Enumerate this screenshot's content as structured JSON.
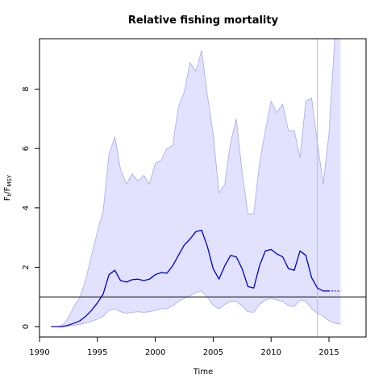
{
  "chart_data": {
    "type": "area",
    "title": "Relative fishing mortality",
    "xlabel": "Time",
    "ylabel": {
      "main": "F",
      "sub1": "t",
      "slash": "/F",
      "sub2": "MSY"
    },
    "xlim": [
      1990,
      2018.2
    ],
    "ylim": [
      -0.35,
      9.7
    ],
    "xticks": [
      1990,
      1995,
      2000,
      2005,
      2010,
      2015
    ],
    "yticks": [
      0,
      2,
      4,
      6,
      8
    ],
    "reference_line_y": 1.0,
    "vertical_line_x": 2014.0,
    "colors": {
      "median": "#0000cc",
      "band_fill": "#e2e2ff",
      "band_edge": "#a8a8ee",
      "reference": "#000000",
      "vertical": "#bbbbbb"
    },
    "series": [
      {
        "role": "median",
        "x": [
          1991,
          1991.5,
          1992,
          1992.5,
          1993,
          1993.5,
          1994,
          1994.5,
          1995,
          1995.5,
          1996,
          1996.5,
          1997,
          1997.5,
          1998,
          1998.5,
          1999,
          1999.5,
          2000,
          2000.5,
          2001,
          2001.5,
          2002,
          2002.5,
          2003,
          2003.5,
          2004,
          2004.5,
          2005,
          2005.5,
          2006,
          2006.5,
          2007,
          2007.5,
          2008,
          2008.5,
          2009,
          2009.5,
          2010,
          2010.5,
          2011,
          2011.5,
          2012,
          2012.5,
          2013,
          2013.5,
          2014,
          2014.5,
          2015
        ],
        "y": [
          0.0,
          0.0,
          0.0,
          0.05,
          0.12,
          0.2,
          0.35,
          0.55,
          0.8,
          1.1,
          1.75,
          1.9,
          1.55,
          1.5,
          1.58,
          1.6,
          1.55,
          1.6,
          1.75,
          1.82,
          1.8,
          2.05,
          2.4,
          2.75,
          2.95,
          3.2,
          3.25,
          2.7,
          1.95,
          1.6,
          2.05,
          2.4,
          2.35,
          1.95,
          1.35,
          1.3,
          2.05,
          2.55,
          2.6,
          2.45,
          2.35,
          1.95,
          1.9,
          2.55,
          2.4,
          1.65,
          1.3,
          1.2,
          1.2
        ]
      },
      {
        "role": "projection",
        "style": "dotted",
        "x": [
          2015,
          2015.5,
          2016
        ],
        "y": [
          1.2,
          1.2,
          1.2
        ]
      },
      {
        "role": "upper",
        "x": [
          1991,
          1991.5,
          1992,
          1992.5,
          1993,
          1993.5,
          1994,
          1994.5,
          1995,
          1995.5,
          1996,
          1996.5,
          1997,
          1997.5,
          1998,
          1998.5,
          1999,
          1999.5,
          2000,
          2000.5,
          2001,
          2001.5,
          2002,
          2002.5,
          2003,
          2003.5,
          2004,
          2004.5,
          2005,
          2005.5,
          2006,
          2006.5,
          2007,
          2007.5,
          2008,
          2008.5,
          2009,
          2009.5,
          2010,
          2010.5,
          2011,
          2011.5,
          2012,
          2012.5,
          2013,
          2013.5,
          2014,
          2014.5,
          2015,
          2015.5,
          2016
        ],
        "y": [
          0.0,
          0.0,
          0.05,
          0.3,
          0.7,
          1.0,
          1.6,
          2.4,
          3.2,
          3.9,
          5.8,
          6.4,
          5.3,
          4.8,
          5.15,
          4.9,
          5.1,
          4.8,
          5.5,
          5.6,
          6.0,
          6.1,
          7.4,
          7.9,
          8.9,
          8.6,
          9.3,
          7.8,
          6.5,
          4.5,
          4.8,
          6.2,
          7.0,
          5.2,
          3.8,
          3.8,
          5.5,
          6.6,
          7.6,
          7.2,
          7.5,
          6.6,
          6.6,
          5.7,
          7.6,
          7.7,
          6.2,
          4.8,
          6.5,
          9.7,
          9.7
        ]
      },
      {
        "role": "lower",
        "x": [
          1991,
          1991.5,
          1992,
          1992.5,
          1993,
          1993.5,
          1994,
          1994.5,
          1995,
          1995.5,
          1996,
          1996.5,
          1997,
          1997.5,
          1998,
          1998.5,
          1999,
          1999.5,
          2000,
          2000.5,
          2001,
          2001.5,
          2002,
          2002.5,
          2003,
          2003.5,
          2004,
          2004.5,
          2005,
          2005.5,
          2006,
          2006.5,
          2007,
          2007.5,
          2008,
          2008.5,
          2009,
          2009.5,
          2010,
          2010.5,
          2011,
          2011.5,
          2012,
          2012.5,
          2013,
          2013.5,
          2014,
          2014.5,
          2015,
          2015.5,
          2016
        ],
        "y": [
          0.0,
          0.0,
          0.0,
          0.02,
          0.05,
          0.08,
          0.12,
          0.18,
          0.25,
          0.35,
          0.55,
          0.6,
          0.5,
          0.45,
          0.48,
          0.5,
          0.48,
          0.5,
          0.55,
          0.6,
          0.6,
          0.7,
          0.85,
          0.95,
          1.05,
          1.15,
          1.2,
          1.0,
          0.72,
          0.6,
          0.75,
          0.85,
          0.85,
          0.7,
          0.5,
          0.48,
          0.75,
          0.9,
          0.95,
          0.9,
          0.85,
          0.7,
          0.68,
          0.9,
          0.85,
          0.6,
          0.45,
          0.35,
          0.2,
          0.12,
          0.08
        ]
      }
    ]
  }
}
